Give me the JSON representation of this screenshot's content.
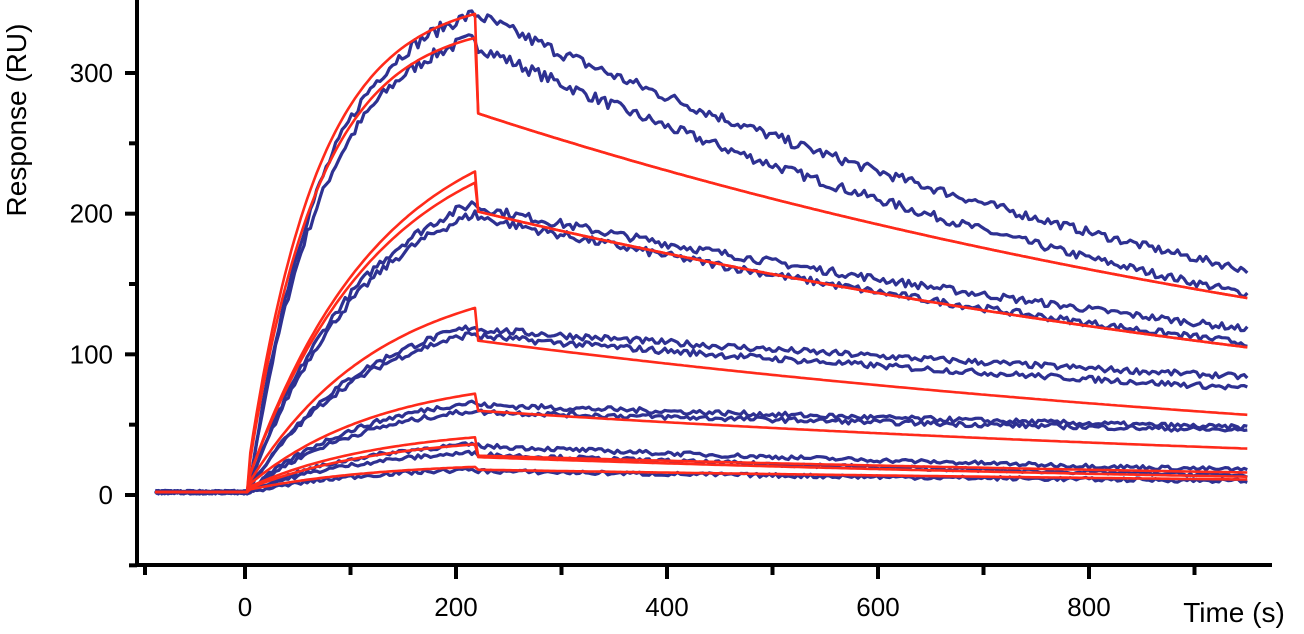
{
  "chart_data": {
    "type": "line",
    "title": "",
    "xlabel": "Time (s)",
    "ylabel": "Response (RU)",
    "xlim": [
      -95,
      980
    ],
    "ylim": [
      -50,
      350
    ],
    "xticks": [
      0,
      200,
      400,
      600,
      800
    ],
    "xticks_minor": [
      100,
      300,
      500,
      700,
      900
    ],
    "yticks": [
      0,
      100,
      200,
      300
    ],
    "grid": false,
    "legend": "none",
    "colors": {
      "measured": "#2e3192",
      "fit": "#ff2a1a"
    },
    "injection_start_s": 5,
    "injection_end_s": 218,
    "data_end_s": 950,
    "series_measured": [
      {
        "values_at": {
          "inject_start": 10,
          "end_association": 325,
          "start_dissociation": 320,
          "end": 143
        }
      },
      {
        "values_at": {
          "inject_start": 10,
          "end_association": 342,
          "start_dissociation": 342,
          "end": 160
        }
      },
      {
        "values_at": {
          "inject_start": 8,
          "end_association": 208,
          "start_dissociation": 205,
          "end": 118
        }
      },
      {
        "values_at": {
          "inject_start": 8,
          "end_association": 200,
          "start_dissociation": 198,
          "end": 108
        }
      },
      {
        "values_at": {
          "inject_start": 6,
          "end_association": 120,
          "start_dissociation": 118,
          "end": 84
        }
      },
      {
        "values_at": {
          "inject_start": 6,
          "end_association": 115,
          "start_dissociation": 113,
          "end": 76
        }
      },
      {
        "values_at": {
          "inject_start": 4,
          "end_association": 66,
          "start_dissociation": 64,
          "end": 48
        }
      },
      {
        "values_at": {
          "inject_start": 4,
          "end_association": 60,
          "start_dissociation": 59,
          "end": 46
        }
      },
      {
        "values_at": {
          "inject_start": 3,
          "end_association": 36,
          "start_dissociation": 35,
          "end": 18
        }
      },
      {
        "values_at": {
          "inject_start": 3,
          "end_association": 30,
          "start_dissociation": 29,
          "end": 14
        }
      },
      {
        "values_at": {
          "inject_start": 2,
          "end_association": 18,
          "start_dissociation": 17,
          "end": 10
        }
      }
    ],
    "series_fit": [
      {
        "values_at": {
          "inject_start": 30,
          "end_association": 342,
          "start_dissociation": 272,
          "end": 140
        }
      },
      {
        "values_at": {
          "inject_start": 25,
          "end_association": 325,
          "start_dissociation": 272,
          "end": 140
        }
      },
      {
        "values_at": {
          "inject_start": 15,
          "end_association": 230,
          "start_dissociation": 202,
          "end": 105
        }
      },
      {
        "values_at": {
          "inject_start": 15,
          "end_association": 222,
          "start_dissociation": 202,
          "end": 105
        }
      },
      {
        "values_at": {
          "inject_start": 10,
          "end_association": 133,
          "start_dissociation": 110,
          "end": 57
        }
      },
      {
        "values_at": {
          "inject_start": 8,
          "end_association": 72,
          "start_dissociation": 60,
          "end": 33
        }
      },
      {
        "values_at": {
          "inject_start": 6,
          "end_association": 41,
          "start_dissociation": 28,
          "end": 16
        }
      },
      {
        "values_at": {
          "inject_start": 5,
          "end_association": 36,
          "start_dissociation": 27,
          "end": 13
        }
      },
      {
        "values_at": {
          "inject_start": 4,
          "end_association": 20,
          "start_dissociation": 18,
          "end": 11
        }
      }
    ]
  }
}
